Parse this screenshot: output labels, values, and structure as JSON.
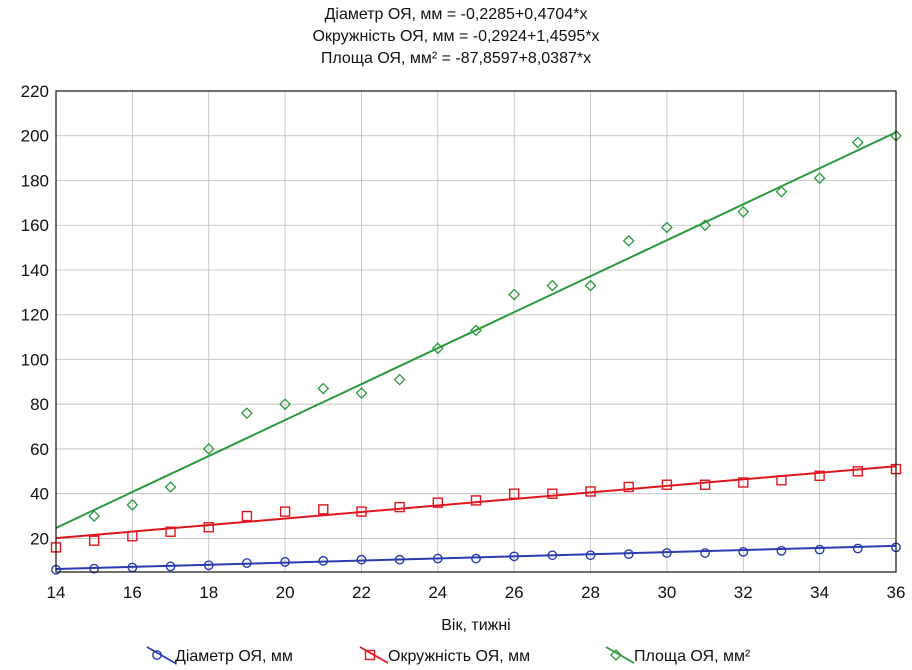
{
  "chart_data": {
    "type": "scatter",
    "title_lines": [
      "Діаметр ОЯ, мм = -0,2285+0,4704*x",
      "Окружність ОЯ, мм = -0,2924+1,4595*x",
      "Площа ОЯ, мм² = -87,8597+8,0387*x"
    ],
    "xlabel": "Вік, тижні",
    "ylabel": "",
    "xlim": [
      14,
      36
    ],
    "ylim": [
      5,
      220
    ],
    "xticks": [
      "14",
      "16",
      "18",
      "20",
      "22",
      "24",
      "26",
      "28",
      "30",
      "32",
      "34",
      "36"
    ],
    "yticks": [
      "20",
      "40",
      "60",
      "80",
      "100",
      "120",
      "140",
      "160",
      "180",
      "200",
      "220"
    ],
    "grid": true,
    "legend_position": "bottom",
    "series": [
      {
        "name": "Діаметр ОЯ, мм",
        "color": "#2b3bb0",
        "marker": "circle",
        "fit": {
          "intercept": -0.2285,
          "slope": 0.4704
        },
        "x": [
          14,
          15,
          16,
          17,
          18,
          19,
          20,
          21,
          22,
          23,
          24,
          25,
          26,
          27,
          28,
          29,
          30,
          31,
          32,
          33,
          34,
          35,
          36
        ],
        "y": [
          6,
          6.5,
          7,
          7.5,
          8,
          9,
          9.5,
          10,
          10.5,
          10.5,
          11,
          11,
          12,
          12.5,
          12.5,
          13,
          13.5,
          13.5,
          14,
          14.5,
          15,
          15.5,
          16
        ]
      },
      {
        "name": "Окружність ОЯ, мм",
        "color": "#e0161e",
        "marker": "square",
        "fit": {
          "intercept": -0.2924,
          "slope": 1.4595
        },
        "x": [
          14,
          15,
          16,
          17,
          18,
          19,
          20,
          21,
          22,
          23,
          24,
          25,
          26,
          27,
          28,
          29,
          30,
          31,
          32,
          33,
          34,
          35,
          36
        ],
        "y": [
          16,
          19,
          21,
          23,
          25,
          30,
          32,
          33,
          32,
          34,
          36,
          37,
          40,
          40,
          41,
          43,
          44,
          44,
          45,
          46,
          48,
          50,
          51
        ]
      },
      {
        "name": "Площа ОЯ, мм²",
        "color": "#2a9a3c",
        "marker": "diamond",
        "fit": {
          "intercept": -87.8597,
          "slope": 8.0387
        },
        "x": [
          15,
          16,
          17,
          18,
          19,
          20,
          21,
          22,
          23,
          24,
          25,
          26,
          27,
          28,
          29,
          30,
          31,
          32,
          33,
          34,
          35,
          36
        ],
        "y": [
          30,
          35,
          43,
          60,
          76,
          80,
          87,
          85,
          91,
          105,
          113,
          129,
          133,
          133,
          153,
          159,
          160,
          166,
          175,
          181,
          197,
          200
        ]
      }
    ]
  }
}
